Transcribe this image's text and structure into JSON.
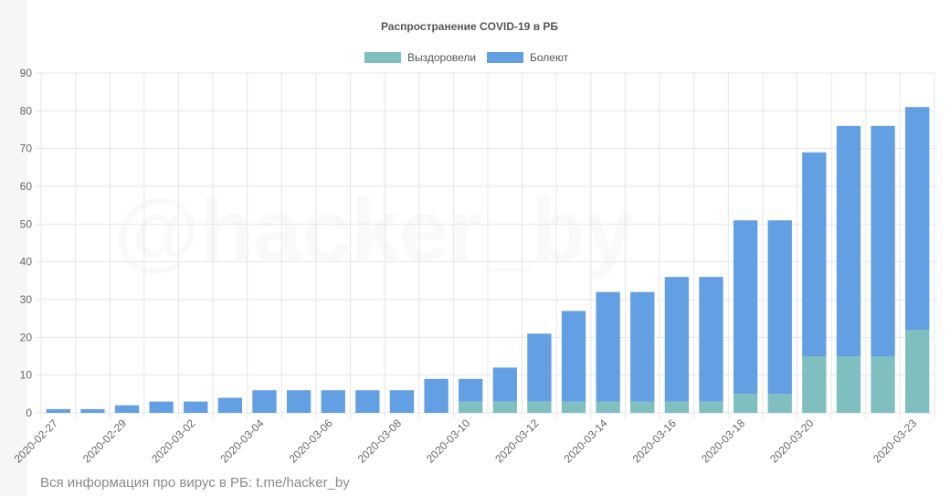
{
  "watermark": "@hacker_by",
  "footer": "Вся информация про вирус в РБ: t.me/hacker_by",
  "colors": {
    "recovered": "#7fbfc0",
    "sick": "#639fe3",
    "grid": "#e6e6e6"
  },
  "chart_data": {
    "type": "bar",
    "stacked": true,
    "title": "Распространение COVID-19 в РБ",
    "legend_position": "top-center",
    "grid": true,
    "ylim": [
      0,
      90
    ],
    "yticks": [
      0,
      10,
      20,
      30,
      40,
      50,
      60,
      70,
      80,
      90
    ],
    "categories": [
      "2020-02-27",
      "2020-02-28",
      "2020-02-29",
      "2020-03-01",
      "2020-03-02",
      "2020-03-03",
      "2020-03-04",
      "2020-03-05",
      "2020-03-06",
      "2020-03-07",
      "2020-03-08",
      "2020-03-09",
      "2020-03-10",
      "2020-03-11",
      "2020-03-12",
      "2020-03-13",
      "2020-03-14",
      "2020-03-15",
      "2020-03-16",
      "2020-03-17",
      "2020-03-18",
      "2020-03-19",
      "2020-03-20",
      "2020-03-21",
      "2020-03-22",
      "2020-03-23"
    ],
    "tick_labels": [
      "2020-02-27",
      "",
      "2020-02-29",
      "",
      "2020-03-02",
      "",
      "2020-03-04",
      "",
      "2020-03-06",
      "",
      "2020-03-08",
      "",
      "2020-03-10",
      "",
      "2020-03-12",
      "",
      "2020-03-14",
      "",
      "2020-03-16",
      "",
      "2020-03-18",
      "",
      "2020-03-20",
      "",
      "",
      "2020-03-23"
    ],
    "series": [
      {
        "name": "Выздоровели",
        "color": "#7fbfc0",
        "values": [
          0,
          0,
          0,
          0,
          0,
          0,
          0,
          0,
          0,
          0,
          0,
          0,
          3,
          3,
          3,
          3,
          3,
          3,
          3,
          3,
          5,
          5,
          15,
          15,
          15,
          22
        ]
      },
      {
        "name": "Болеют",
        "color": "#639fe3",
        "values": [
          1,
          1,
          2,
          3,
          3,
          4,
          6,
          6,
          6,
          6,
          6,
          9,
          6,
          9,
          18,
          24,
          29,
          29,
          33,
          33,
          46,
          46,
          54,
          61,
          61,
          59
        ]
      }
    ]
  }
}
